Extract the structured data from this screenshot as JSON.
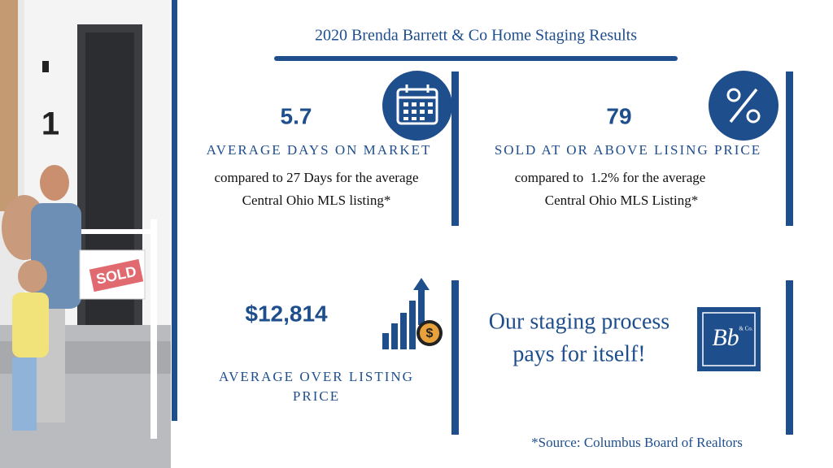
{
  "header": {
    "title": "2020 Brenda Barrett & Co Home Staging Results"
  },
  "stats": [
    {
      "value": "5.7",
      "label": "AVERAGE DAYS ON MARKET",
      "note": [
        "compared to 27 Days for the average",
        "Central Ohio MLS listing*"
      ]
    },
    {
      "value": "79",
      "label": "SOLD AT OR ABOVE LISING PRICE",
      "note": [
        "compared to  1.2% for the average",
        "Central Ohio MLS Listing*"
      ]
    },
    {
      "value": "$12,814",
      "label": [
        "AVERAGE OVER LISTING",
        "PRICE"
      ]
    }
  ],
  "tagline": [
    "Our staging process",
    "pays for itself!"
  ],
  "logo": {
    "mark": "Bb",
    "sub": "& Co."
  },
  "photo": {
    "sign": "SOLD",
    "house_number": "1"
  },
  "source": "*Source: Columbus Board of Realtors"
}
